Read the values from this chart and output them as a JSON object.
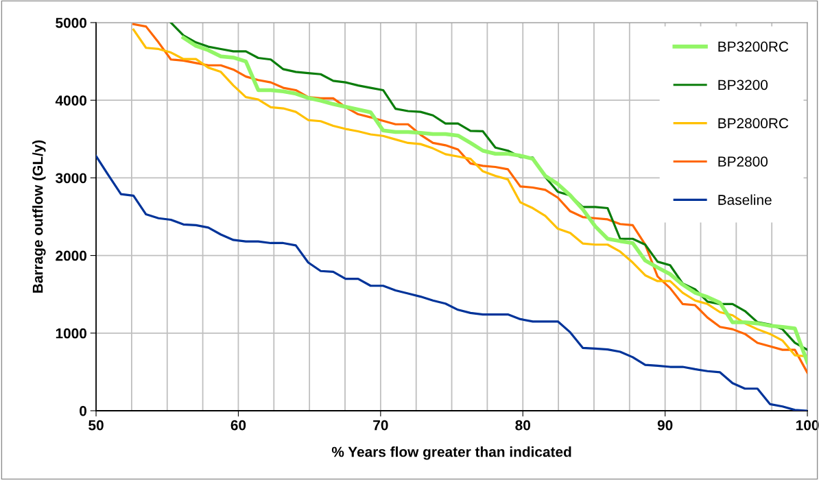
{
  "chart_data": {
    "type": "line",
    "xlabel": "% Years flow greater than indicated",
    "ylabel": "Barrage outflow (GL/y)",
    "x": [
      50,
      50.88,
      51.75,
      52.63,
      53.51,
      54.39,
      55.26,
      56.14,
      57.02,
      57.89,
      58.77,
      59.65,
      60.53,
      61.4,
      62.28,
      63.16,
      64.04,
      64.91,
      65.79,
      66.67,
      67.54,
      68.42,
      69.3,
      70.18,
      71.05,
      71.93,
      72.81,
      73.68,
      74.56,
      75.44,
      76.32,
      77.19,
      78.07,
      78.95,
      79.82,
      80.7,
      81.58,
      82.46,
      83.33,
      84.21,
      85.09,
      85.96,
      86.84,
      87.72,
      88.6,
      89.47,
      90.35,
      91.23,
      92.11,
      92.98,
      93.86,
      94.74,
      95.61,
      96.49,
      97.37,
      98.25,
      99.12,
      100
    ],
    "series": [
      {
        "name": "BP3200RC",
        "color": "#92f566",
        "values": [
          null,
          null,
          null,
          null,
          null,
          null,
          null,
          4805,
          4700,
          4645,
          4565,
          4550,
          4500,
          4130,
          4130,
          4115,
          4085,
          4030,
          3995,
          3950,
          3915,
          3880,
          3845,
          3610,
          3590,
          3590,
          3580,
          3565,
          3565,
          3545,
          3450,
          3350,
          3310,
          3310,
          3285,
          3245,
          3025,
          2920,
          2775,
          2595,
          2375,
          2215,
          2185,
          2160,
          1935,
          1845,
          1760,
          1625,
          1520,
          1465,
          1390,
          1140,
          1140,
          1125,
          1095,
          1080,
          1060,
          625
        ]
      },
      {
        "name": "BP3200",
        "color": "#0b7d0b",
        "values": [
          null,
          null,
          null,
          null,
          null,
          null,
          5000,
          4835,
          4745,
          4690,
          4660,
          4630,
          4630,
          4545,
          4525,
          4400,
          4365,
          4350,
          4335,
          4250,
          4230,
          4190,
          4160,
          4130,
          3890,
          3860,
          3850,
          3805,
          3700,
          3700,
          3605,
          3600,
          3390,
          3350,
          3270,
          3260,
          3010,
          2820,
          2775,
          2625,
          2625,
          2610,
          2215,
          2215,
          2140,
          1920,
          1875,
          1640,
          1565,
          1405,
          1375,
          1375,
          1285,
          1140,
          1110,
          1050,
          875,
          785
        ]
      },
      {
        "name": "BP2800RC",
        "color": "#ffc000",
        "values": [
          null,
          null,
          null,
          4910,
          4675,
          4660,
          4615,
          4530,
          4530,
          4420,
          4365,
          4190,
          4040,
          4010,
          3910,
          3895,
          3850,
          3745,
          3730,
          3670,
          3630,
          3600,
          3560,
          3540,
          3495,
          3450,
          3435,
          3380,
          3305,
          3275,
          3245,
          3085,
          3025,
          2980,
          2685,
          2610,
          2510,
          2345,
          2290,
          2155,
          2140,
          2140,
          2050,
          1910,
          1745,
          1670,
          1670,
          1520,
          1420,
          1375,
          1270,
          1230,
          1125,
          1050,
          990,
          905,
          715,
          700
        ]
      },
      {
        "name": "BP2800",
        "color": "#ff6600",
        "values": [
          null,
          null,
          null,
          4980,
          4950,
          4745,
          4525,
          4510,
          4480,
          4450,
          4450,
          4395,
          4305,
          4260,
          4230,
          4160,
          4130,
          4040,
          4025,
          4025,
          3910,
          3820,
          3780,
          3735,
          3690,
          3690,
          3555,
          3450,
          3420,
          3365,
          3185,
          3155,
          3140,
          3110,
          2890,
          2875,
          2845,
          2745,
          2570,
          2495,
          2480,
          2465,
          2405,
          2390,
          2140,
          1730,
          1580,
          1375,
          1360,
          1200,
          1080,
          1050,
          990,
          875,
          830,
          785,
          785,
          490
        ]
      },
      {
        "name": "Baseline",
        "color": "#003399",
        "values": [
          3280,
          3030,
          2790,
          2770,
          2530,
          2480,
          2460,
          2400,
          2390,
          2360,
          2270,
          2200,
          2180,
          2180,
          2160,
          2160,
          2130,
          1910,
          1800,
          1790,
          1700,
          1700,
          1610,
          1610,
          1550,
          1510,
          1470,
          1420,
          1380,
          1300,
          1260,
          1240,
          1240,
          1240,
          1180,
          1150,
          1150,
          1150,
          1010,
          810,
          800,
          790,
          760,
          690,
          590,
          580,
          565,
          565,
          535,
          510,
          495,
          355,
          285,
          285,
          85,
          55,
          10,
          0
        ]
      }
    ],
    "xlim": [
      50,
      100
    ],
    "xticks": [
      50,
      {
        "value": 52.5,
        "label": null
      },
      {
        "value": 55,
        "label": null
      },
      {
        "value": 57.5,
        "label": null
      },
      60,
      {
        "value": 62.5,
        "label": null
      },
      {
        "value": 65,
        "label": null
      },
      {
        "value": 67.5,
        "label": null
      },
      70,
      {
        "value": 72.5,
        "label": null
      },
      {
        "value": 75,
        "label": null
      },
      {
        "value": 77.5,
        "label": null
      },
      80,
      {
        "value": 82.5,
        "label": null
      },
      {
        "value": 85,
        "label": null
      },
      {
        "value": 87.5,
        "label": null
      },
      90,
      {
        "value": 92.5,
        "label": null
      },
      {
        "value": 95,
        "label": null
      },
      {
        "value": 97.5,
        "label": null
      },
      100
    ],
    "ylim": [
      0,
      5000
    ],
    "yticks": [
      0,
      1000,
      2000,
      3000,
      4000,
      5000
    ],
    "grid": true,
    "legend": "top right",
    "marker": "none",
    "line_style": "solid"
  }
}
